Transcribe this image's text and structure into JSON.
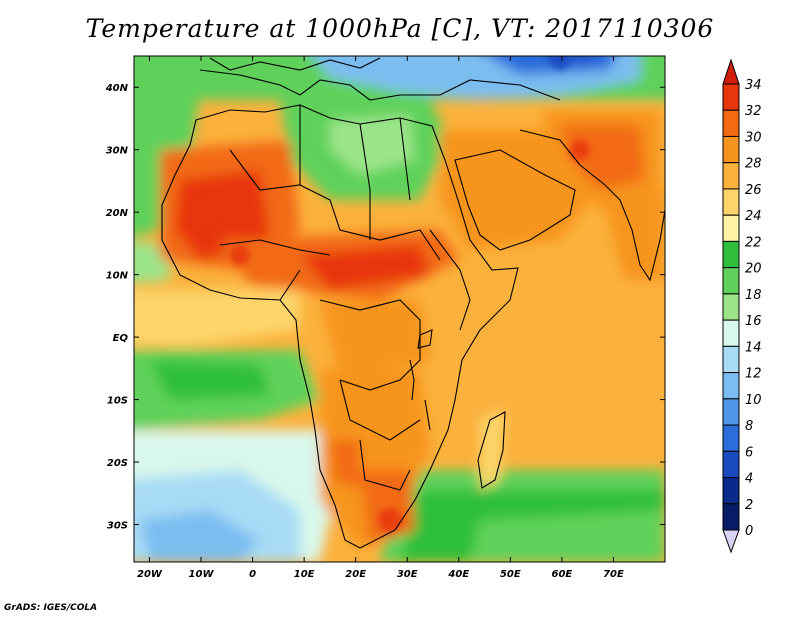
{
  "title": "Temperature at 1000hPa [C], VT: 2017110306",
  "credit": "GrADS: IGES/COLA",
  "map": {
    "extent_lon": [
      -23,
      80
    ],
    "extent_lat": [
      -36,
      45
    ],
    "lat_ticks": [
      {
        "value": 40,
        "label": "40N"
      },
      {
        "value": 30,
        "label": "30N"
      },
      {
        "value": 20,
        "label": "20N"
      },
      {
        "value": 10,
        "label": "10N"
      },
      {
        "value": 0,
        "label": "EQ"
      },
      {
        "value": -10,
        "label": "10S"
      },
      {
        "value": -20,
        "label": "20S"
      },
      {
        "value": -30,
        "label": "30S"
      }
    ],
    "lon_ticks": [
      {
        "value": -20,
        "label": "20W"
      },
      {
        "value": -10,
        "label": "10W"
      },
      {
        "value": 0,
        "label": "0"
      },
      {
        "value": 10,
        "label": "10E"
      },
      {
        "value": 20,
        "label": "20E"
      },
      {
        "value": 30,
        "label": "30E"
      },
      {
        "value": 40,
        "label": "40E"
      },
      {
        "value": 50,
        "label": "50E"
      },
      {
        "value": 60,
        "label": "60E"
      },
      {
        "value": 70,
        "label": "70E"
      }
    ]
  },
  "colorbar": {
    "levels": [
      "34",
      "32",
      "30",
      "28",
      "26",
      "24",
      "22",
      "20",
      "18",
      "16",
      "14",
      "12",
      "10",
      "8",
      "6",
      "4",
      "2",
      "0"
    ],
    "colors": [
      "#a50f15",
      "#e8350c",
      "#f26b12",
      "#f7941d",
      "#fbb13c",
      "#fdd56b",
      "#fff3a6",
      "#2fbf3b",
      "#5fd15a",
      "#9be48a",
      "#d9f8ec",
      "#a8dcf5",
      "#7bbdf0",
      "#4f95e8",
      "#2c6ddb",
      "#1a4cc0",
      "#0a2a8c",
      "#061c66"
    ],
    "top_color": "#cf1d0a",
    "bottom_color": "#d8d4f5"
  }
}
